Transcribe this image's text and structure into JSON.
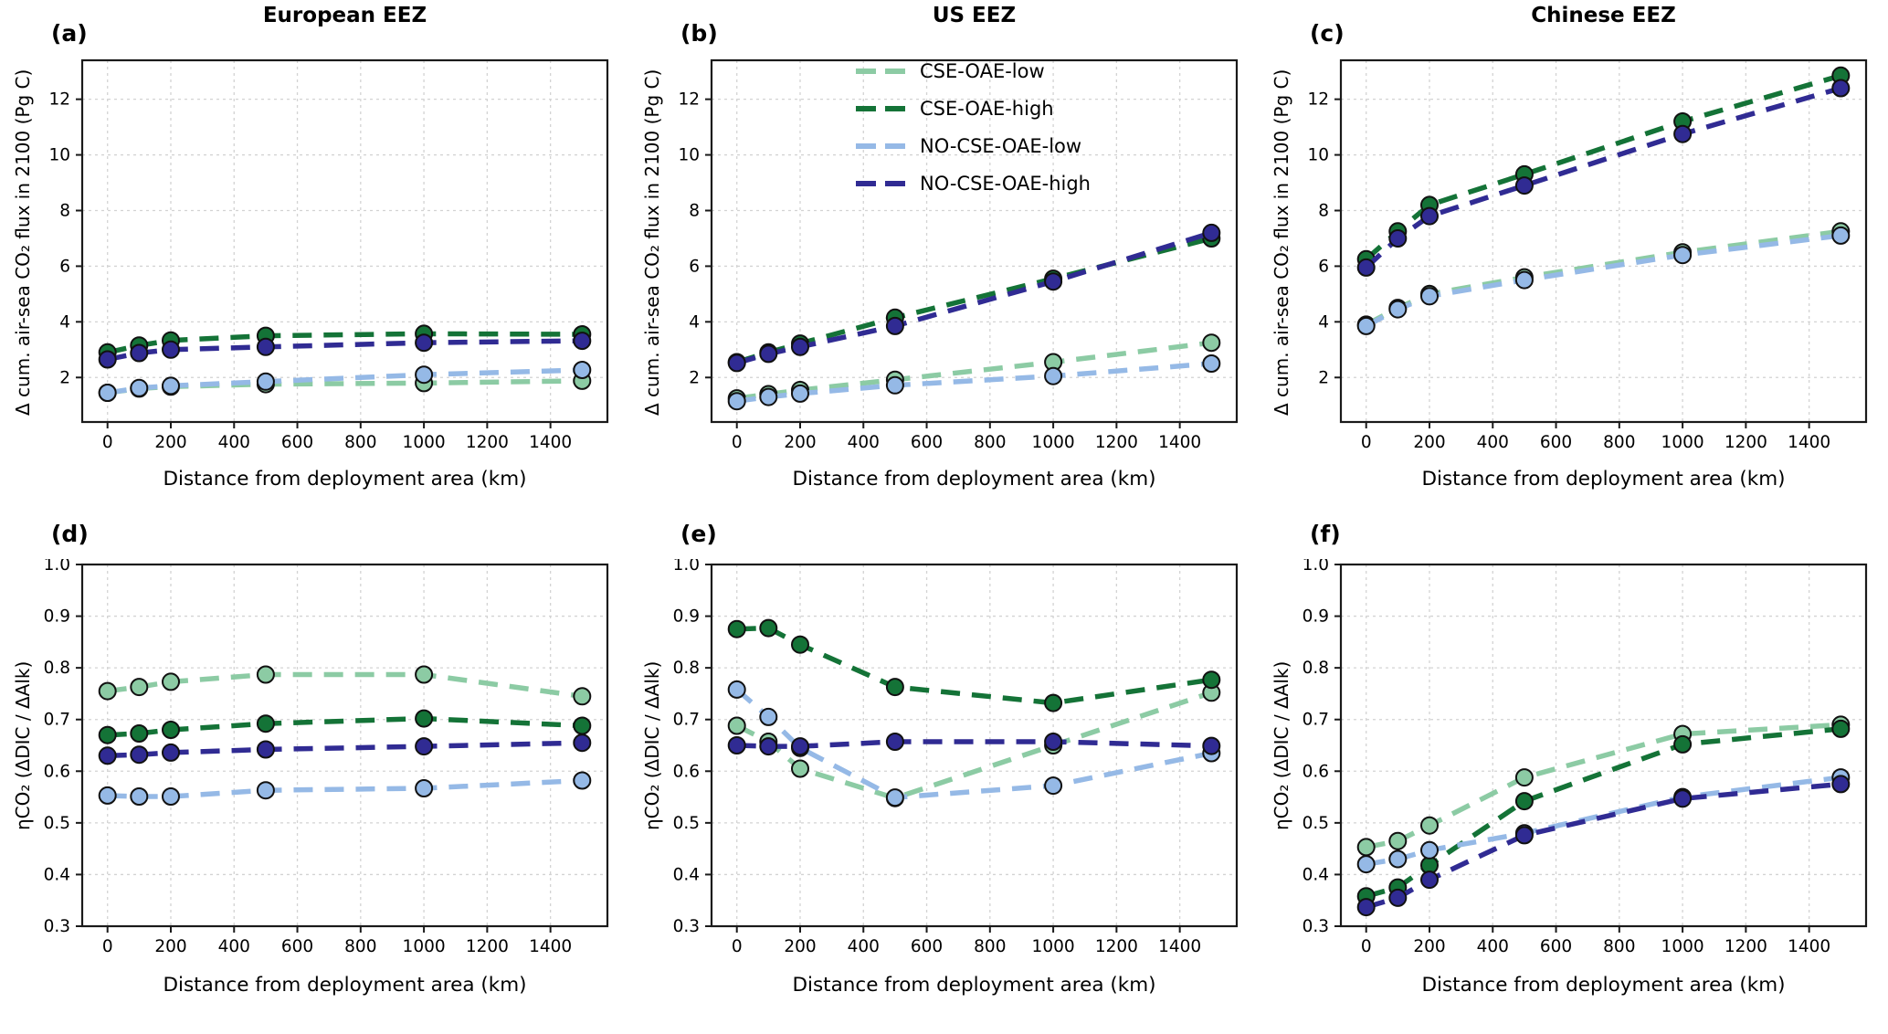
{
  "figure": {
    "column_titles": [
      "European EEZ",
      "US EEZ",
      "Chinese EEZ"
    ],
    "xlabel": "Distance from deployment area (km)",
    "ylabel_top": "Δ cum. air-sea CO₂ flux in 2100 (Pg C)",
    "ylabel_bottom": "ηCO₂ (ΔDIC / ΔAlk)",
    "panel_letters": [
      "(a)",
      "(b)",
      "(c)",
      "(d)",
      "(e)",
      "(f)"
    ],
    "colors": {
      "cse_oae_low": "#8ccba4",
      "cse_oae_high": "#147337",
      "no_cse_oae_low": "#95b9e6",
      "no_cse_oae_high": "#302b93",
      "grid": "#d3d3d3",
      "spine": "#1a1a1a"
    },
    "legend": {
      "location": "upper area of panel (b)",
      "entries": [
        {
          "label": "CSE-OAE-low",
          "color": "#8ccba4"
        },
        {
          "label": "CSE-OAE-high",
          "color": "#147337"
        },
        {
          "label": "NO-CSE-OAE-low",
          "color": "#95b9e6"
        },
        {
          "label": "NO-CSE-OAE-high",
          "color": "#302b93"
        }
      ]
    }
  },
  "chart_data": [
    {
      "id": "a",
      "panel_label": "(a)",
      "type": "line",
      "title": "European EEZ",
      "xlabel": "Distance from deployment area (km)",
      "ylabel": "Δ cum. air-sea CO₂ flux in 2100 (Pg C)",
      "x": [
        0,
        100,
        200,
        500,
        1000,
        1500
      ],
      "xlim": [
        -80,
        1580
      ],
      "xticks": [
        0,
        200,
        400,
        600,
        800,
        1000,
        1200,
        1400
      ],
      "ylim": [
        0.4,
        13.4
      ],
      "yticks": [
        2,
        4,
        6,
        8,
        10,
        12
      ],
      "grid": true,
      "linestyle": "dashed",
      "marker": "circle",
      "series": [
        {
          "name": "CSE-OAE-low",
          "color": "#8ccba4",
          "values": [
            1.45,
            1.6,
            1.67,
            1.76,
            1.8,
            1.88
          ]
        },
        {
          "name": "CSE-OAE-high",
          "color": "#147337",
          "values": [
            2.9,
            3.15,
            3.33,
            3.5,
            3.57,
            3.55
          ]
        },
        {
          "name": "NO-CSE-OAE-low",
          "color": "#95b9e6",
          "values": [
            1.45,
            1.62,
            1.7,
            1.85,
            2.1,
            2.27
          ]
        },
        {
          "name": "NO-CSE-OAE-high",
          "color": "#302b93",
          "values": [
            2.65,
            2.88,
            3.0,
            3.1,
            3.25,
            3.32
          ]
        }
      ]
    },
    {
      "id": "b",
      "panel_label": "(b)",
      "type": "line",
      "title": "US EEZ",
      "xlabel": "Distance from deployment area (km)",
      "ylabel": "Δ cum. air-sea CO₂ flux in 2100 (Pg C)",
      "x": [
        0,
        100,
        200,
        500,
        1000,
        1500
      ],
      "xlim": [
        -80,
        1580
      ],
      "xticks": [
        0,
        200,
        400,
        600,
        800,
        1000,
        1200,
        1400
      ],
      "ylim": [
        0.4,
        13.4
      ],
      "yticks": [
        2,
        4,
        6,
        8,
        10,
        12
      ],
      "grid": true,
      "linestyle": "dashed",
      "marker": "circle",
      "has_legend": true,
      "series": [
        {
          "name": "CSE-OAE-low",
          "color": "#8ccba4",
          "values": [
            1.25,
            1.4,
            1.55,
            1.92,
            2.55,
            3.25
          ]
        },
        {
          "name": "CSE-OAE-high",
          "color": "#147337",
          "values": [
            2.55,
            2.9,
            3.22,
            4.15,
            5.55,
            7.0
          ]
        },
        {
          "name": "NO-CSE-OAE-low",
          "color": "#95b9e6",
          "values": [
            1.15,
            1.3,
            1.42,
            1.72,
            2.05,
            2.5
          ]
        },
        {
          "name": "NO-CSE-OAE-high",
          "color": "#302b93",
          "values": [
            2.52,
            2.85,
            3.1,
            3.85,
            5.45,
            7.2
          ]
        }
      ]
    },
    {
      "id": "c",
      "panel_label": "(c)",
      "type": "line",
      "title": "Chinese EEZ",
      "xlabel": "Distance from deployment area (km)",
      "ylabel": "Δ cum. air-sea CO₂ flux in 2100 (Pg C)",
      "x": [
        0,
        100,
        200,
        500,
        1000,
        1500
      ],
      "xlim": [
        -80,
        1580
      ],
      "xticks": [
        0,
        200,
        400,
        600,
        800,
        1000,
        1200,
        1400
      ],
      "ylim": [
        0.4,
        13.4
      ],
      "yticks": [
        2,
        4,
        6,
        8,
        10,
        12
      ],
      "grid": true,
      "linestyle": "dashed",
      "marker": "circle",
      "series": [
        {
          "name": "CSE-OAE-low",
          "color": "#8ccba4",
          "values": [
            3.9,
            4.5,
            5.0,
            5.6,
            6.5,
            7.25
          ]
        },
        {
          "name": "CSE-OAE-high",
          "color": "#147337",
          "values": [
            6.25,
            7.25,
            8.2,
            9.3,
            11.2,
            12.85
          ]
        },
        {
          "name": "NO-CSE-OAE-low",
          "color": "#95b9e6",
          "values": [
            3.85,
            4.45,
            4.92,
            5.5,
            6.4,
            7.1
          ]
        },
        {
          "name": "NO-CSE-OAE-high",
          "color": "#302b93",
          "values": [
            5.95,
            7.0,
            7.8,
            8.9,
            10.75,
            12.4
          ]
        }
      ]
    },
    {
      "id": "d",
      "panel_label": "(d)",
      "type": "line",
      "title": "European EEZ",
      "xlabel": "Distance from deployment area (km)",
      "ylabel": "ηCO₂ (ΔDIC / ΔAlk)",
      "x": [
        0,
        100,
        200,
        500,
        1000,
        1500
      ],
      "xlim": [
        -80,
        1580
      ],
      "xticks": [
        0,
        200,
        400,
        600,
        800,
        1000,
        1200,
        1400
      ],
      "ylim": [
        0.3,
        1.0
      ],
      "yticks": [
        0.3,
        0.4,
        0.5,
        0.6,
        0.7,
        0.8,
        0.9,
        1.0
      ],
      "grid": true,
      "linestyle": "dashed",
      "marker": "circle",
      "series": [
        {
          "name": "CSE-OAE-low",
          "color": "#8ccba4",
          "values": [
            0.755,
            0.763,
            0.773,
            0.787,
            0.787,
            0.745
          ]
        },
        {
          "name": "CSE-OAE-high",
          "color": "#147337",
          "values": [
            0.67,
            0.673,
            0.68,
            0.692,
            0.702,
            0.688
          ]
        },
        {
          "name": "NO-CSE-OAE-low",
          "color": "#95b9e6",
          "values": [
            0.553,
            0.551,
            0.551,
            0.563,
            0.567,
            0.582
          ]
        },
        {
          "name": "NO-CSE-OAE-high",
          "color": "#302b93",
          "values": [
            0.63,
            0.632,
            0.636,
            0.642,
            0.648,
            0.655
          ]
        }
      ]
    },
    {
      "id": "e",
      "panel_label": "(e)",
      "type": "line",
      "title": "US EEZ",
      "xlabel": "Distance from deployment area (km)",
      "ylabel": "ηCO₂ (ΔDIC / ΔAlk)",
      "x": [
        0,
        100,
        200,
        500,
        1000,
        1500
      ],
      "xlim": [
        -80,
        1580
      ],
      "xticks": [
        0,
        200,
        400,
        600,
        800,
        1000,
        1200,
        1400
      ],
      "ylim": [
        0.3,
        1.0
      ],
      "yticks": [
        0.3,
        0.4,
        0.5,
        0.6,
        0.7,
        0.8,
        0.9,
        1.0
      ],
      "grid": true,
      "linestyle": "dashed",
      "marker": "circle",
      "series": [
        {
          "name": "CSE-OAE-low",
          "color": "#8ccba4",
          "values": [
            0.688,
            0.657,
            0.605,
            0.548,
            0.65,
            0.752
          ]
        },
        {
          "name": "CSE-OAE-high",
          "color": "#147337",
          "values": [
            0.875,
            0.877,
            0.845,
            0.763,
            0.732,
            0.777
          ]
        },
        {
          "name": "NO-CSE-OAE-low",
          "color": "#95b9e6",
          "values": [
            0.758,
            0.705,
            0.645,
            0.549,
            0.572,
            0.635
          ]
        },
        {
          "name": "NO-CSE-OAE-high",
          "color": "#302b93",
          "values": [
            0.65,
            0.648,
            0.648,
            0.657,
            0.657,
            0.649
          ]
        }
      ]
    },
    {
      "id": "f",
      "panel_label": "(f)",
      "type": "line",
      "title": "Chinese EEZ",
      "xlabel": "Distance from deployment area (km)",
      "ylabel": "ηCO₂ (ΔDIC / ΔAlk)",
      "x": [
        0,
        100,
        200,
        500,
        1000,
        1500
      ],
      "xlim": [
        -80,
        1580
      ],
      "xticks": [
        0,
        200,
        400,
        600,
        800,
        1000,
        1200,
        1400
      ],
      "ylim": [
        0.3,
        1.0
      ],
      "yticks": [
        0.3,
        0.4,
        0.5,
        0.6,
        0.7,
        0.8,
        0.9,
        1.0
      ],
      "grid": true,
      "linestyle": "dashed",
      "marker": "circle",
      "series": [
        {
          "name": "CSE-OAE-low",
          "color": "#8ccba4",
          "values": [
            0.453,
            0.465,
            0.495,
            0.588,
            0.672,
            0.69
          ]
        },
        {
          "name": "CSE-OAE-high",
          "color": "#147337",
          "values": [
            0.358,
            0.375,
            0.418,
            0.542,
            0.652,
            0.682
          ]
        },
        {
          "name": "NO-CSE-OAE-low",
          "color": "#95b9e6",
          "values": [
            0.42,
            0.43,
            0.447,
            0.48,
            0.55,
            0.588
          ]
        },
        {
          "name": "NO-CSE-OAE-high",
          "color": "#302b93",
          "values": [
            0.337,
            0.355,
            0.39,
            0.476,
            0.547,
            0.575
          ]
        }
      ]
    }
  ]
}
